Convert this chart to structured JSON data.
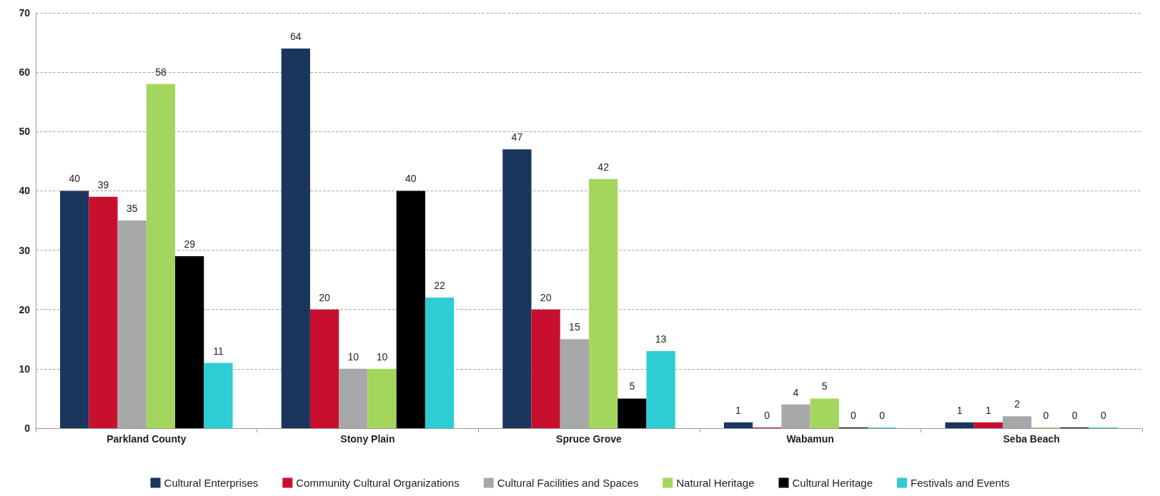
{
  "chart_data": {
    "type": "bar",
    "categories": [
      "Parkland County",
      "Stony Plain",
      "Spruce Grove",
      "Wabamun",
      "Seba Beach"
    ],
    "series": [
      {
        "name": "Cultural Enterprises",
        "color": "#1b365d",
        "values": [
          40,
          64,
          47,
          1,
          1
        ]
      },
      {
        "name": "Community Cultural Organizations",
        "color": "#c8102e",
        "values": [
          39,
          20,
          20,
          0,
          1
        ]
      },
      {
        "name": "Cultural Facilities and Spaces",
        "color": "#a7a8aa",
        "values": [
          35,
          10,
          15,
          4,
          2
        ]
      },
      {
        "name": "Natural Heritage",
        "color": "#a4d65e",
        "values": [
          58,
          10,
          42,
          5,
          0
        ]
      },
      {
        "name": "Cultural Heritage",
        "color": "#000000",
        "values": [
          29,
          40,
          5,
          0,
          0
        ]
      },
      {
        "name": "Festivals and Events",
        "color": "#2ccdd4",
        "values": [
          11,
          22,
          13,
          0,
          0
        ]
      }
    ],
    "ylim": [
      0,
      70
    ],
    "yticks": [
      0,
      10,
      20,
      30,
      40,
      50,
      60,
      70
    ],
    "grid": "y",
    "legend": "bottom",
    "data_labels": true
  }
}
